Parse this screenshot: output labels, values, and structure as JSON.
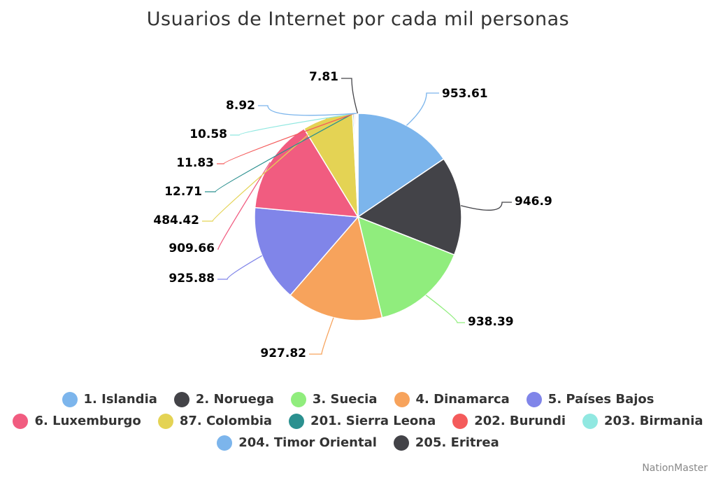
{
  "chart_data": {
    "type": "pie",
    "title": "Usuarios de Internet por cada mil personas",
    "legend_position": "bottom",
    "series": [
      {
        "name": "1. Islandia",
        "value": 953.61,
        "label": "953.61",
        "color": "#7cb5ec"
      },
      {
        "name": "2. Noruega",
        "value": 946.9,
        "label": "946.9",
        "color": "#434348"
      },
      {
        "name": "3. Suecia",
        "value": 938.39,
        "label": "938.39",
        "color": "#90ed7d"
      },
      {
        "name": "4. Dinamarca",
        "value": 927.82,
        "label": "927.82",
        "color": "#f7a35c"
      },
      {
        "name": "5. Países Bajos",
        "value": 925.88,
        "label": "925.88",
        "color": "#8085e9"
      },
      {
        "name": "6. Luxemburgo",
        "value": 909.66,
        "label": "909.66",
        "color": "#f15c80"
      },
      {
        "name": "87. Colombia",
        "value": 484.42,
        "label": "484.42",
        "color": "#e4d354"
      },
      {
        "name": "201. Sierra Leona",
        "value": 12.71,
        "label": "12.71",
        "color": "#2b908f"
      },
      {
        "name": "202. Burundi",
        "value": 11.83,
        "label": "11.83",
        "color": "#f45b5b"
      },
      {
        "name": "203. Birmania",
        "value": 10.58,
        "label": "10.58",
        "color": "#91e8e1"
      },
      {
        "name": "204. Timor Oriental",
        "value": 8.92,
        "label": "8.92",
        "color": "#7cb5ec"
      },
      {
        "name": "205. Eritrea",
        "value": 7.81,
        "label": "7.81",
        "color": "#434348"
      }
    ]
  },
  "credit": "NationMaster"
}
